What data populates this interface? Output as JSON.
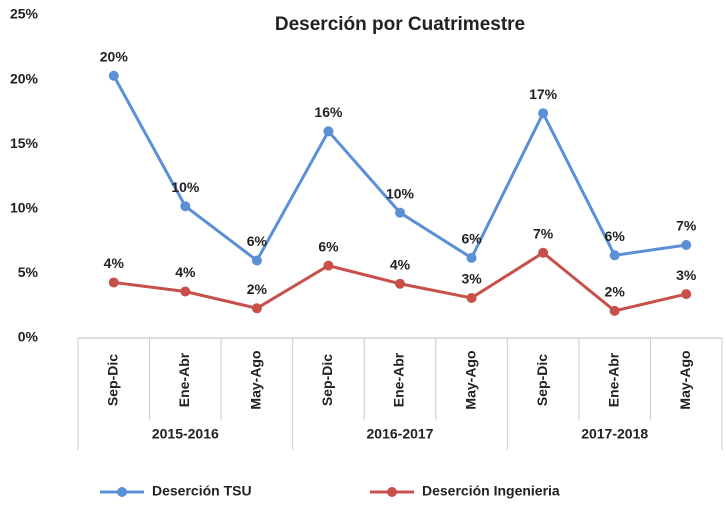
{
  "chart_data": {
    "type": "line",
    "title": "Deserción por Cuatrimestre",
    "categories": [
      "Sep-Dic",
      "Ene-Abr",
      "May-Ago",
      "Sep-Dic",
      "Ene-Abr",
      "May-Ago",
      "Sep-Dic",
      "Ene-Abr",
      "May-Ago"
    ],
    "groups": [
      "2015-2016",
      "2016-2017",
      "2017-2018"
    ],
    "series": [
      {
        "name": "Deserción TSU",
        "color": "#5b8fd6",
        "values": [
          20.3,
          10.2,
          6.0,
          16.0,
          9.7,
          6.2,
          17.4,
          6.4,
          7.2
        ],
        "value_labels": [
          "20%",
          "10%",
          "6%",
          "16%",
          "10%",
          "6%",
          "17%",
          "6%",
          "7%"
        ]
      },
      {
        "name": "Deserción Ingenieria",
        "color": "#c8504b",
        "values": [
          4.3,
          3.6,
          2.3,
          5.6,
          4.2,
          3.1,
          6.6,
          2.1,
          3.4
        ],
        "value_labels": [
          "4%",
          "4%",
          "2%",
          "6%",
          "4%",
          "3%",
          "7%",
          "2%",
          "3%"
        ]
      }
    ],
    "ylim": [
      0,
      25
    ],
    "yticks": [
      {
        "value": 0,
        "label": "0%"
      },
      {
        "value": 5,
        "label": "5%"
      },
      {
        "value": 10,
        "label": "10%"
      },
      {
        "value": 15,
        "label": "15%"
      },
      {
        "value": 20,
        "label": "20%"
      },
      {
        "value": 25,
        "label": "25%"
      }
    ],
    "grid": false,
    "legend": "bottom"
  }
}
